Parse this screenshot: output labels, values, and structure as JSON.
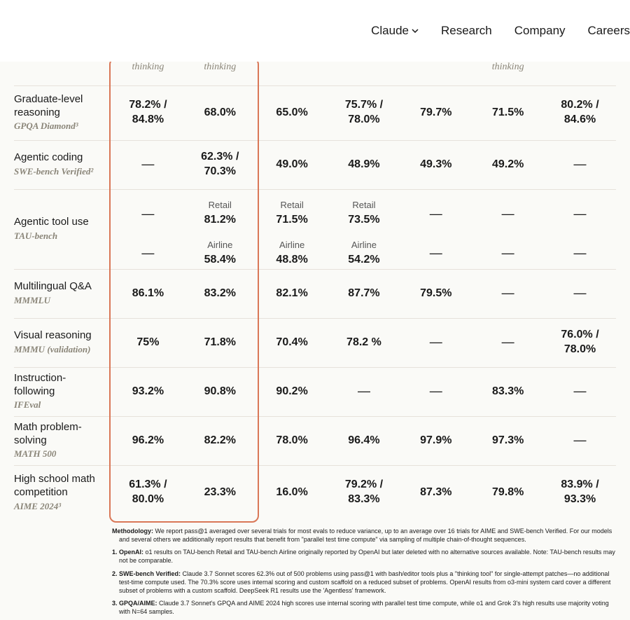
{
  "nav": {
    "claude": "Claude",
    "research": "Research",
    "company": "Company",
    "careers": "Careers"
  },
  "columns": {
    "c1": "thinking",
    "c2": "thinking",
    "c3": "",
    "c4": "",
    "c5": "",
    "c6": "thinking",
    "c7": ""
  },
  "rows": {
    "gpqa": {
      "title": "Graduate-level reasoning",
      "sub": "GPQA Diamond³",
      "c1a": "78.2% /",
      "c1b": "84.8%",
      "c2": "68.0%",
      "c3": "65.0%",
      "c4a": "75.7% /",
      "c4b": "78.0%",
      "c5": "79.7%",
      "c6": "71.5%",
      "c7a": "80.2% /",
      "c7b": "84.6%"
    },
    "swe": {
      "title": "Agentic coding",
      "sub": "SWE-bench Verified²",
      "c1": "—",
      "c2a": "62.3% /",
      "c2b": "70.3%",
      "c3": "49.0%",
      "c4": "48.9%",
      "c5": "49.3%",
      "c6": "49.2%",
      "c7": "—"
    },
    "tau": {
      "title": "Agentic tool use",
      "sub": "TAU-bench",
      "r1": {
        "c1": "—",
        "c2l": "Retail",
        "c2": "81.2%",
        "c3l": "Retail",
        "c3": "71.5%",
        "c4l": "Retail",
        "c4": "73.5%",
        "c5": "—",
        "c6": "—",
        "c7": "—"
      },
      "r2": {
        "c1": "—",
        "c2l": "Airline",
        "c2": "58.4%",
        "c3l": "Airline",
        "c3": "48.8%",
        "c4l": "Airline",
        "c4": "54.2%",
        "c5": "—",
        "c6": "—",
        "c7": "—"
      }
    },
    "mmmlu": {
      "title": "Multilingual Q&A",
      "sub": "MMMLU",
      "c1": "86.1%",
      "c2": "83.2%",
      "c3": "82.1%",
      "c4": "87.7%",
      "c5": "79.5%",
      "c6": "—",
      "c7": "—"
    },
    "mmmu": {
      "title": "Visual reasoning",
      "sub": "MMMU (validation)",
      "c1": "75%",
      "c2": "71.8%",
      "c3": "70.4%",
      "c4": "78.2 %",
      "c5": "—",
      "c6": "—",
      "c7a": "76.0% /",
      "c7b": "78.0%"
    },
    "ifeval": {
      "title": "Instruction-following",
      "sub": "IFEval",
      "c1": "93.2%",
      "c2": "90.8%",
      "c3": "90.2%",
      "c4": "—",
      "c5": "—",
      "c6": "83.3%",
      "c7": "—"
    },
    "math500": {
      "title": "Math problem-solving",
      "sub": "MATH 500",
      "c1": "96.2%",
      "c2": "82.2%",
      "c3": "78.0%",
      "c4": "96.4%",
      "c5": "97.9%",
      "c6": "97.3%",
      "c7": "—"
    },
    "aime": {
      "title": "High school math competition",
      "sub": "AIME 2024³",
      "c1a": "61.3% /",
      "c1b": "80.0%",
      "c2": "23.3%",
      "c3": "16.0%",
      "c4a": "79.2% /",
      "c4b": "83.3%",
      "c5": "87.3%",
      "c6": "79.8%",
      "c7a": "83.9% /",
      "c7b": "93.3%"
    }
  },
  "footnotes": {
    "meth_lead": "Methodology:",
    "meth": " We report pass@1 averaged over several trials for most evals to reduce variance, up to an average over 16 trials for AIME and SWE-bench Verified. For our models and several others we additionally report results that benefit from \"parallel test time compute\" via sampling of multiple chain-of-thought sequences.",
    "f1_lead": "1. OpenAI:",
    "f1": " o1 results on TAU-bench Retail and TAU-bench Airline originally reported by OpenAI but later deleted with no alternative sources available. Note: TAU-bench results may not be comparable.",
    "f2_lead": "2. SWE-bench Verified:",
    "f2": " Claude 3.7 Sonnet scores 62.3% out of 500 problems using pass@1 with bash/editor tools plus a \"thinking tool\" for single-attempt patches—no additional test-time compute used. The 70.3% score uses internal scoring and custom scaffold on a reduced subset of problems. OpenAI results from o3-mini system card cover a different subset of problems with a custom scaffold. DeepSeek R1 results use the 'Agentless' framework.",
    "f3_lead": "3. GPQA/AIME:",
    "f3": " Claude 3.7 Sonnet's GPQA and AIME 2024 high scores use internal scoring with parallel test time compute, while o1 and Grok 3's high results use majority voting with N=64 samples."
  },
  "highlight": {
    "color": "#d97757"
  }
}
